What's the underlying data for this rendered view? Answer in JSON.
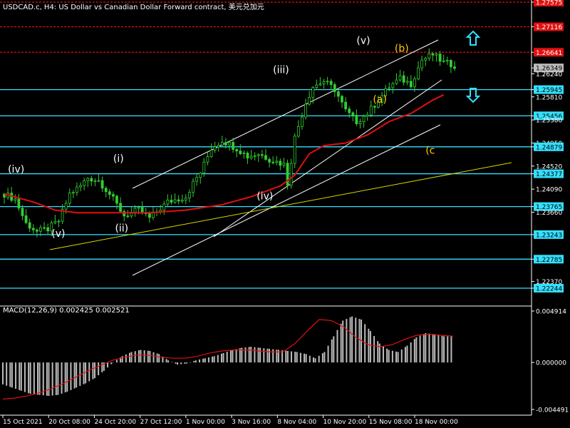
{
  "header": {
    "title": "USDCAD.c, H4:  US Dollar vs Canadian Dollar Forward contract, 美元兑加元"
  },
  "macd": {
    "label": "MACD(12,26,9) 0.002425 0.002521"
  },
  "colors": {
    "background": "#000000",
    "candle": "#33cc33",
    "ma": "#e01010",
    "support": "#33e0ff",
    "resistance": "#e01010",
    "channel": "#ffffff",
    "trend": "#d8d800",
    "histogram": "#bbbbbb",
    "signal": "#e01010",
    "arrow": "#33ddff",
    "label_white": "#ffffff",
    "label_yellow": "#ffcc00"
  },
  "chart_data": {
    "type": "candlestick",
    "symbol": "USDCAD.c",
    "timeframe": "H4",
    "price_axis": {
      "ylim": [
        1.21964,
        1.27575
      ],
      "labels": [
        "1.27575",
        "1.27116",
        "1.26641",
        "1.26349",
        "1.26240",
        "1.25945",
        "1.25810",
        "1.25456",
        "1.25380",
        "1.24950",
        "1.24879",
        "1.24520",
        "1.24377",
        "1.24090",
        "1.23765",
        "1.23660",
        "1.23243",
        "1.22785",
        "1.22370",
        "1.22244"
      ]
    },
    "time_axis": {
      "labels": [
        "15 Oct 2021",
        "20 Oct 08:00",
        "24 Oct 20:00",
        "27 Oct 12:00",
        "1 Nov 00:00",
        "3 Nov 16:00",
        "8 Nov 04:00",
        "10 Nov 20:00",
        "15 Nov 08:00",
        "18 Nov 00:00"
      ]
    },
    "current_price": "1.26349",
    "support_levels": [
      "1.25945",
      "1.25456",
      "1.24879",
      "1.24377",
      "1.23765",
      "1.23243",
      "1.22785",
      "1.22244"
    ],
    "resistance_levels": [
      "1.27575",
      "1.27116",
      "1.26641"
    ],
    "price_path": [
      [
        0,
        1.24
      ],
      [
        3,
        1.239
      ],
      [
        6,
        1.2345
      ],
      [
        9,
        1.233
      ],
      [
        12,
        1.2335
      ],
      [
        15,
        1.235
      ],
      [
        18,
        1.24
      ],
      [
        21,
        1.2415
      ],
      [
        23,
        1.243
      ],
      [
        26,
        1.2425
      ],
      [
        29,
        1.24
      ],
      [
        33,
        1.236
      ],
      [
        37,
        1.237
      ],
      [
        40,
        1.2355
      ],
      [
        45,
        1.2385
      ],
      [
        50,
        1.2395
      ],
      [
        52,
        1.242
      ],
      [
        54,
        1.244
      ],
      [
        57,
        1.2485
      ],
      [
        60,
        1.25
      ],
      [
        64,
        1.2485
      ],
      [
        67,
        1.247
      ],
      [
        70,
        1.2475
      ],
      [
        73,
        1.2465
      ],
      [
        77,
        1.2455
      ],
      [
        78,
        1.242
      ],
      [
        80,
        1.2505
      ],
      [
        83,
        1.257
      ],
      [
        85,
        1.26
      ],
      [
        88,
        1.261
      ],
      [
        91,
        1.2595
      ],
      [
        94,
        1.2555
      ],
      [
        97,
        1.2535
      ],
      [
        100,
        1.255
      ],
      [
        103,
        1.2575
      ],
      [
        106,
        1.26
      ],
      [
        109,
        1.2615
      ],
      [
        112,
        1.2605
      ],
      [
        115,
        1.265
      ],
      [
        118,
        1.266
      ],
      [
        121,
        1.2645
      ],
      [
        124,
        1.264
      ]
    ],
    "ma_path": [
      [
        0,
        1.24
      ],
      [
        8,
        1.2385
      ],
      [
        14,
        1.237
      ],
      [
        20,
        1.2365
      ],
      [
        30,
        1.2365
      ],
      [
        40,
        1.2365
      ],
      [
        50,
        1.237
      ],
      [
        60,
        1.238
      ],
      [
        68,
        1.2395
      ],
      [
        76,
        1.2415
      ],
      [
        80,
        1.2435
      ],
      [
        84,
        1.2475
      ],
      [
        88,
        1.249
      ],
      [
        94,
        1.2495
      ],
      [
        100,
        1.251
      ],
      [
        106,
        1.2535
      ],
      [
        112,
        1.255
      ],
      [
        118,
        1.2575
      ],
      [
        121,
        1.2585
      ]
    ],
    "wave_labels": [
      {
        "text": "(iv)",
        "x": 2,
        "price": 1.244,
        "color": "white"
      },
      {
        "text": "(v)",
        "x": 26,
        "price": 1.232,
        "color": "white"
      },
      {
        "text": "(i)",
        "x": 60,
        "price": 1.246,
        "color": "white"
      },
      {
        "text": "(ii)",
        "x": 61,
        "price": 1.233,
        "color": "white"
      },
      {
        "text": "(iii)",
        "x": 148,
        "price": 1.2625,
        "color": "white"
      },
      {
        "text": "(iv)",
        "x": 139,
        "price": 1.239,
        "color": "white"
      },
      {
        "text": "(v)",
        "x": 194,
        "price": 1.268,
        "color": "white"
      },
      {
        "text": "(b)",
        "x": 215,
        "price": 1.2665,
        "color": "yellow"
      },
      {
        "text": "(a)",
        "x": 203,
        "price": 1.257,
        "color": "yellow"
      },
      {
        "text": "(c",
        "x": 232,
        "price": 1.2475,
        "color": "yellow"
      }
    ],
    "macd": {
      "ylim": [
        -0.004491,
        0.004914
      ],
      "labels": [
        "0.004914",
        "0.000000",
        "-0.004491"
      ],
      "histogram": [
        -0.0021,
        -0.0024,
        -0.0027,
        -0.003,
        -0.0031,
        -0.0032,
        -0.0031,
        -0.0028,
        -0.0024,
        -0.002,
        -0.0015,
        -0.0008,
        0.0,
        0.0006,
        0.001,
        0.0012,
        0.0011,
        0.0008,
        0.0002,
        -0.0002,
        -0.0001,
        0.0002,
        0.0004,
        0.0006,
        0.0009,
        0.0012,
        0.0014,
        0.0015,
        0.0014,
        0.0013,
        0.0012,
        0.0011,
        0.001,
        0.0008,
        0.0004,
        0.001,
        0.0025,
        0.004,
        0.0044,
        0.0041,
        0.003,
        0.0018,
        0.0012,
        0.001,
        0.0016,
        0.0024,
        0.0028,
        0.0027,
        0.0025,
        0.0025
      ],
      "signal": [
        -0.0035,
        -0.0034,
        -0.0032,
        -0.0029,
        -0.0025,
        -0.002,
        -0.0014,
        -0.0008,
        -0.0003,
        0.0002,
        0.0005,
        0.0007,
        0.0007,
        0.0005,
        0.0004,
        0.0004,
        0.0006,
        0.0009,
        0.0011,
        0.0012,
        0.0012,
        0.0011,
        0.001,
        0.001,
        0.0018,
        0.003,
        0.0041,
        0.004,
        0.0034,
        0.0024,
        0.0017,
        0.0015,
        0.0017,
        0.0022,
        0.0026,
        0.0027,
        0.0026,
        0.0025
      ]
    }
  }
}
